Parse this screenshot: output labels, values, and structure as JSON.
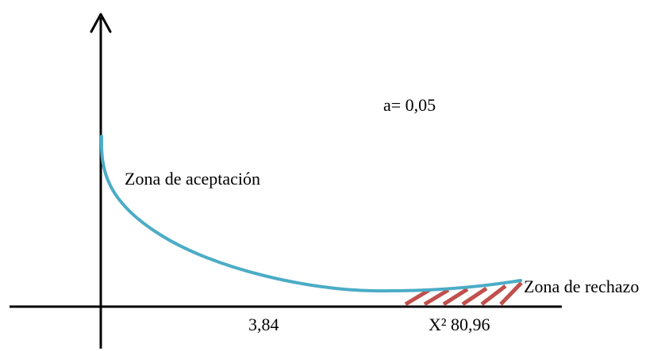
{
  "alpha_label": "a= 0,05",
  "acceptance_zone_label": "Zona de aceptación",
  "rejection_zone_label": "Zona de rechazo",
  "critical_value_label": "3,84",
  "chi_square_label": "X² 80,96",
  "colors": {
    "curve": "#4bacc6",
    "hatch": "#c0504d",
    "axes": "#000000"
  }
}
